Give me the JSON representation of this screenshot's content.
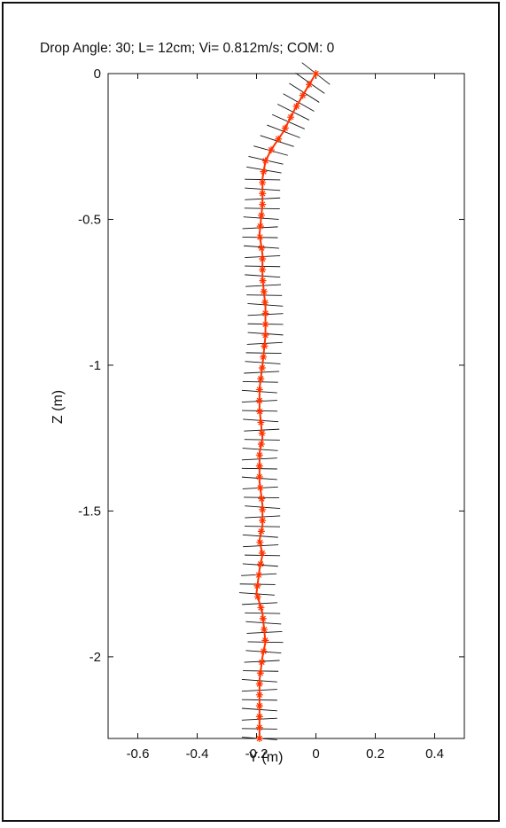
{
  "chart_data": {
    "type": "line",
    "title": "Drop Angle: 30; L= 12cm; Vi= 0.812m/s; COM: 0",
    "xlabel": "Y (m)",
    "ylabel": "Z (m)",
    "xlim": [
      -0.7,
      0.5
    ],
    "ylim": [
      -2.28,
      0
    ],
    "xticks": [
      -0.6,
      -0.4,
      -0.2,
      0,
      0.2,
      0.4
    ],
    "xtick_labels": [
      "-0.6",
      "-0.4",
      "-0.2",
      "0",
      "0.2",
      "0.4"
    ],
    "yticks": [
      0,
      -0.5,
      -1,
      -1.5,
      -2
    ],
    "ytick_labels": [
      "0",
      "-0.5",
      "-1",
      "-1.5",
      "-2"
    ],
    "grid": false,
    "legend": "none",
    "series": [
      {
        "marker": "asterisk",
        "color": "#ff3300",
        "x": [
          0.0,
          -0.03,
          -0.07,
          -0.11,
          -0.15,
          -0.17,
          -0.18,
          -0.18,
          -0.19,
          -0.18,
          -0.18,
          -0.17,
          -0.17,
          -0.18,
          -0.19,
          -0.19,
          -0.18,
          -0.19,
          -0.19,
          -0.18,
          -0.18,
          -0.19,
          -0.18,
          -0.19,
          -0.2,
          -0.18,
          -0.17,
          -0.18,
          -0.19,
          -0.19,
          -0.19
        ],
        "y": [
          0.0,
          -0.05,
          -0.12,
          -0.2,
          -0.26,
          -0.3,
          -0.36,
          -0.45,
          -0.55,
          -0.62,
          -0.7,
          -0.8,
          -0.9,
          -1.0,
          -1.08,
          -1.15,
          -1.25,
          -1.3,
          -1.4,
          -1.48,
          -1.55,
          -1.6,
          -1.65,
          -1.7,
          -1.78,
          -1.85,
          -1.95,
          -2.0,
          -2.08,
          -2.18,
          -2.28
        ]
      }
    ],
    "orientation_segments": {
      "color": "#111111",
      "description_count": 70
    }
  }
}
